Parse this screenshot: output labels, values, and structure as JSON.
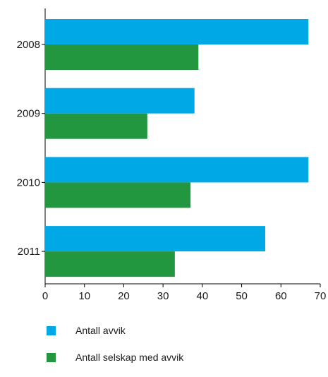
{
  "chart_data": {
    "type": "bar",
    "orientation": "horizontal",
    "categories": [
      "2008",
      "2009",
      "2010",
      "2011"
    ],
    "series": [
      {
        "name": "Antall avvik",
        "color": "#00a9e6",
        "values": [
          67,
          38,
          67,
          56
        ]
      },
      {
        "name": "Antall selskap med avvik",
        "color": "#23973f",
        "values": [
          39,
          26,
          37,
          33
        ]
      }
    ],
    "xlim": [
      0,
      70
    ],
    "xticks": [
      0,
      10,
      20,
      30,
      40,
      50,
      60,
      70
    ],
    "grid": false,
    "legend_position": "bottom-left",
    "title": "",
    "xlabel": "",
    "ylabel": ""
  }
}
